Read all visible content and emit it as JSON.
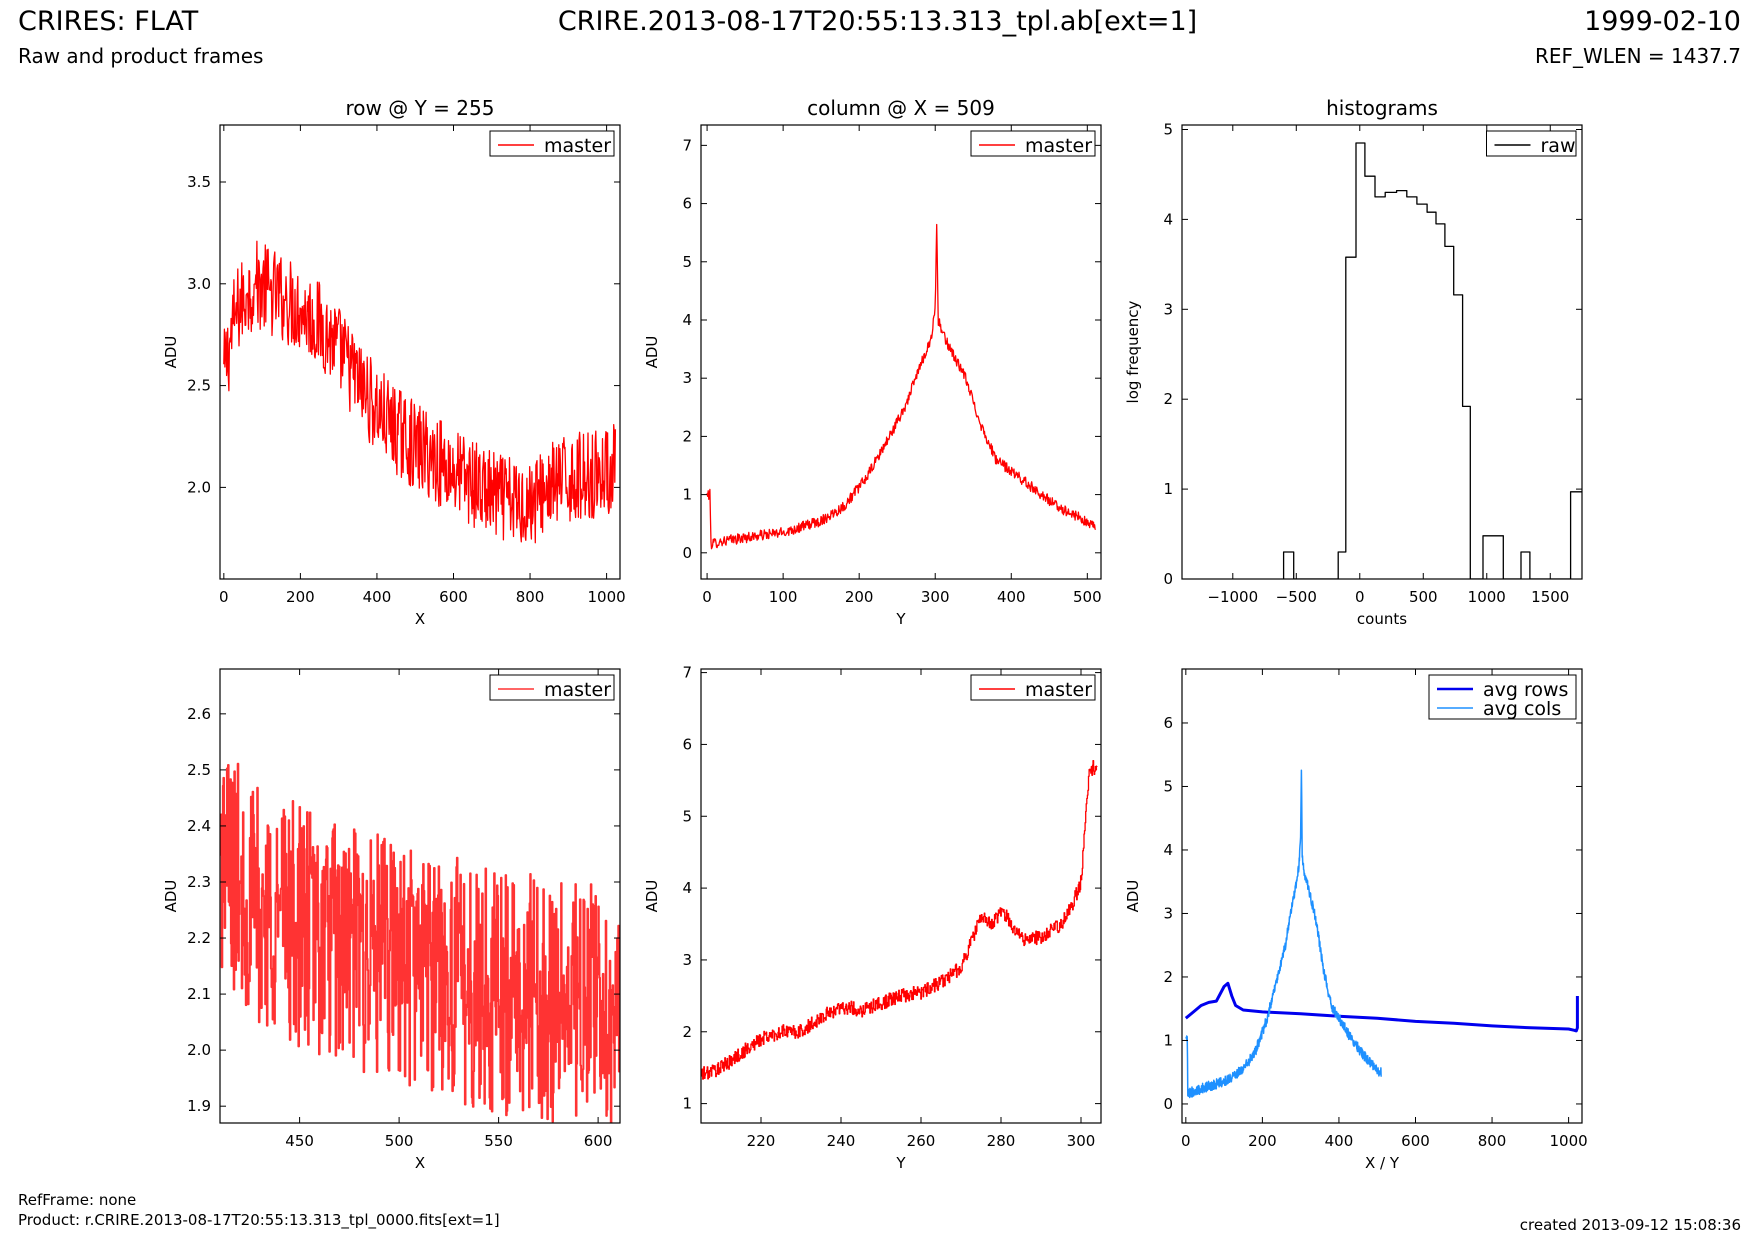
{
  "header": {
    "title": "CRIRES: FLAT",
    "subtitle": "Raw and product frames",
    "center": "CRIRE.2013-08-17T20:55:13.313_tpl.ab[ext=1]",
    "date": "1999-02-10",
    "ref_wlen": "REF_WLEN = 1437.7"
  },
  "footer": {
    "refframe": "RefFrame: none",
    "product": "Product: r.CRIRE.2013-08-17T20:55:13.313_tpl_0000.fits[ext=1]",
    "created": "created 2013-09-12 15:08:36"
  },
  "colors": {
    "red": "#ff0000",
    "black": "#000000",
    "blue": "#0000ee",
    "lightblue": "#1e90ff"
  },
  "chart_data": [
    {
      "type": "line",
      "title": "row @ Y = 255",
      "xlabel": "X",
      "ylabel": "ADU",
      "xlim": [
        -10,
        1035
      ],
      "ylim": [
        1.55,
        3.78
      ],
      "xticks": [
        0,
        200,
        400,
        600,
        800,
        1000
      ],
      "yticks": [
        2.0,
        2.5,
        3.0,
        3.5
      ],
      "legend": "top-right",
      "series": [
        {
          "name": "master",
          "color": "#ff0000",
          "noise": 0.22,
          "x": [
            0,
            30,
            60,
            80,
            120,
            160,
            200,
            260,
            300,
            350,
            400,
            450,
            500,
            550,
            600,
            650,
            700,
            750,
            800,
            850,
            900,
            950,
            1000,
            1023
          ],
          "y": [
            2.55,
            2.85,
            2.95,
            3.0,
            2.97,
            2.92,
            2.88,
            2.78,
            2.68,
            2.52,
            2.38,
            2.28,
            2.2,
            2.14,
            2.08,
            2.02,
            1.96,
            1.93,
            1.92,
            2.0,
            2.04,
            2.06,
            2.08,
            2.1
          ]
        }
      ]
    },
    {
      "type": "line",
      "title": "column @ X = 509",
      "xlabel": "Y",
      "ylabel": "ADU",
      "xlim": [
        -8,
        518
      ],
      "ylim": [
        -0.45,
        7.35
      ],
      "xticks": [
        0,
        100,
        200,
        300,
        400,
        500
      ],
      "yticks": [
        0,
        1,
        2,
        3,
        4,
        5,
        6,
        7
      ],
      "legend": "top-right",
      "series": [
        {
          "name": "master",
          "color": "#ff0000",
          "noise": 0.09,
          "x": [
            0,
            4,
            5,
            20,
            60,
            100,
            150,
            180,
            210,
            240,
            260,
            280,
            295,
            300,
            302,
            304,
            310,
            320,
            340,
            360,
            380,
            400,
            430,
            460,
            490,
            511
          ],
          "y": [
            1.0,
            1.0,
            0.15,
            0.2,
            0.28,
            0.35,
            0.55,
            0.8,
            1.3,
            2.0,
            2.5,
            3.2,
            3.7,
            4.2,
            5.7,
            4.0,
            3.75,
            3.5,
            3.0,
            2.2,
            1.6,
            1.4,
            1.1,
            0.8,
            0.6,
            0.42
          ]
        }
      ]
    },
    {
      "type": "line",
      "title": "histograms",
      "xlabel": "counts",
      "ylabel": "log frequency",
      "xlim": [
        -1400,
        1750
      ],
      "ylim": [
        0,
        5.05
      ],
      "xticks": [
        -1000,
        -500,
        0,
        500,
        1000,
        1500
      ],
      "yticks": [
        0,
        1,
        2,
        3,
        4,
        5
      ],
      "legend": "top-right",
      "series": [
        {
          "name": "raw",
          "color": "#000000",
          "steps": [
            [
              -600,
              0
            ],
            [
              -600,
              0.3
            ],
            [
              -520,
              0.3
            ],
            [
              -520,
              0
            ],
            [
              -170,
              0
            ],
            [
              -170,
              0.3
            ],
            [
              -110,
              0.3
            ],
            [
              -110,
              3.58
            ],
            [
              -30,
              3.58
            ],
            [
              -30,
              4.85
            ],
            [
              40,
              4.85
            ],
            [
              40,
              4.48
            ],
            [
              120,
              4.48
            ],
            [
              120,
              4.25
            ],
            [
              200,
              4.25
            ],
            [
              200,
              4.3
            ],
            [
              290,
              4.3
            ],
            [
              290,
              4.32
            ],
            [
              370,
              4.32
            ],
            [
              370,
              4.25
            ],
            [
              450,
              4.25
            ],
            [
              450,
              4.17
            ],
            [
              530,
              4.17
            ],
            [
              530,
              4.08
            ],
            [
              600,
              4.08
            ],
            [
              600,
              3.95
            ],
            [
              670,
              3.95
            ],
            [
              670,
              3.7
            ],
            [
              740,
              3.7
            ],
            [
              740,
              3.16
            ],
            [
              810,
              3.16
            ],
            [
              810,
              1.92
            ],
            [
              870,
              1.92
            ],
            [
              870,
              0
            ],
            [
              970,
              0
            ],
            [
              970,
              0.48
            ],
            [
              1130,
              0.48
            ],
            [
              1130,
              0
            ],
            [
              1270,
              0
            ],
            [
              1270,
              0.3
            ],
            [
              1340,
              0.3
            ],
            [
              1340,
              0
            ],
            [
              1660,
              0
            ],
            [
              1660,
              0.97
            ],
            [
              1750,
              0.97
            ]
          ]
        }
      ]
    },
    {
      "type": "line",
      "xlabel": "X",
      "ylabel": "ADU",
      "xlim": [
        410,
        611
      ],
      "ylim": [
        1.87,
        2.68
      ],
      "xticks": [
        450,
        500,
        550,
        600
      ],
      "yticks": [
        1.9,
        2.0,
        2.1,
        2.2,
        2.3,
        2.4,
        2.5,
        2.6
      ],
      "legend": "top-right",
      "series": [
        {
          "name": "master",
          "color": "#ff3333",
          "noise": 0.22,
          "step": true,
          "x": [
            410,
            420,
            430,
            440,
            450,
            460,
            480,
            500,
            520,
            540,
            560,
            580,
            600,
            611
          ],
          "y": [
            2.35,
            2.3,
            2.25,
            2.25,
            2.22,
            2.2,
            2.18,
            2.16,
            2.14,
            2.11,
            2.1,
            2.09,
            2.08,
            2.06
          ]
        }
      ]
    },
    {
      "type": "line",
      "xlabel": "Y",
      "ylabel": "ADU",
      "xlim": [
        205,
        305
      ],
      "ylim": [
        0.73,
        7.05
      ],
      "xticks": [
        220,
        240,
        260,
        280,
        300
      ],
      "yticks": [
        1,
        2,
        3,
        4,
        5,
        6,
        7
      ],
      "legend": "top-right",
      "series": [
        {
          "name": "master",
          "color": "#ff0000",
          "noise": 0.1,
          "step": true,
          "x": [
            205,
            210,
            215,
            220,
            225,
            230,
            235,
            240,
            245,
            250,
            255,
            260,
            265,
            270,
            275,
            278,
            280,
            285,
            290,
            295,
            298,
            300,
            301,
            302,
            304
          ],
          "y": [
            1.4,
            1.5,
            1.7,
            1.9,
            2.0,
            2.0,
            2.2,
            2.35,
            2.3,
            2.4,
            2.5,
            2.55,
            2.7,
            2.9,
            3.6,
            3.5,
            3.7,
            3.3,
            3.3,
            3.5,
            3.8,
            4.1,
            4.9,
            5.65,
            5.7
          ]
        }
      ]
    },
    {
      "type": "line",
      "xlabel": "X / Y",
      "ylabel": "ADU",
      "xlim": [
        -10,
        1035
      ],
      "ylim": [
        -0.3,
        6.85
      ],
      "xticks": [
        0,
        200,
        400,
        600,
        800,
        1000
      ],
      "yticks": [
        0,
        1,
        2,
        3,
        4,
        5,
        6
      ],
      "legend": "top-right",
      "series": [
        {
          "name": "avg rows",
          "color": "#0000ee",
          "width": 3,
          "x": [
            0,
            20,
            40,
            60,
            80,
            100,
            110,
            120,
            130,
            150,
            200,
            300,
            400,
            500,
            600,
            700,
            800,
            900,
            1000,
            1015,
            1020,
            1023,
            1023
          ],
          "y": [
            1.35,
            1.45,
            1.55,
            1.6,
            1.62,
            1.85,
            1.9,
            1.7,
            1.55,
            1.48,
            1.45,
            1.42,
            1.38,
            1.35,
            1.3,
            1.27,
            1.23,
            1.2,
            1.18,
            1.16,
            1.15,
            1.2,
            1.7
          ]
        },
        {
          "name": "avg cols",
          "color": "#1e90ff",
          "width": 1.5,
          "noise": 0.08,
          "x": [
            0,
            4,
            5,
            20,
            60,
            100,
            150,
            180,
            210,
            240,
            260,
            280,
            295,
            300,
            302,
            304,
            310,
            320,
            340,
            360,
            380,
            400,
            430,
            460,
            490,
            511
          ],
          "y": [
            1.0,
            1.0,
            0.15,
            0.2,
            0.28,
            0.35,
            0.55,
            0.8,
            1.3,
            2.0,
            2.5,
            3.2,
            3.7,
            4.2,
            5.3,
            3.9,
            3.6,
            3.4,
            2.9,
            2.1,
            1.55,
            1.35,
            1.05,
            0.8,
            0.6,
            0.48
          ]
        }
      ]
    }
  ]
}
